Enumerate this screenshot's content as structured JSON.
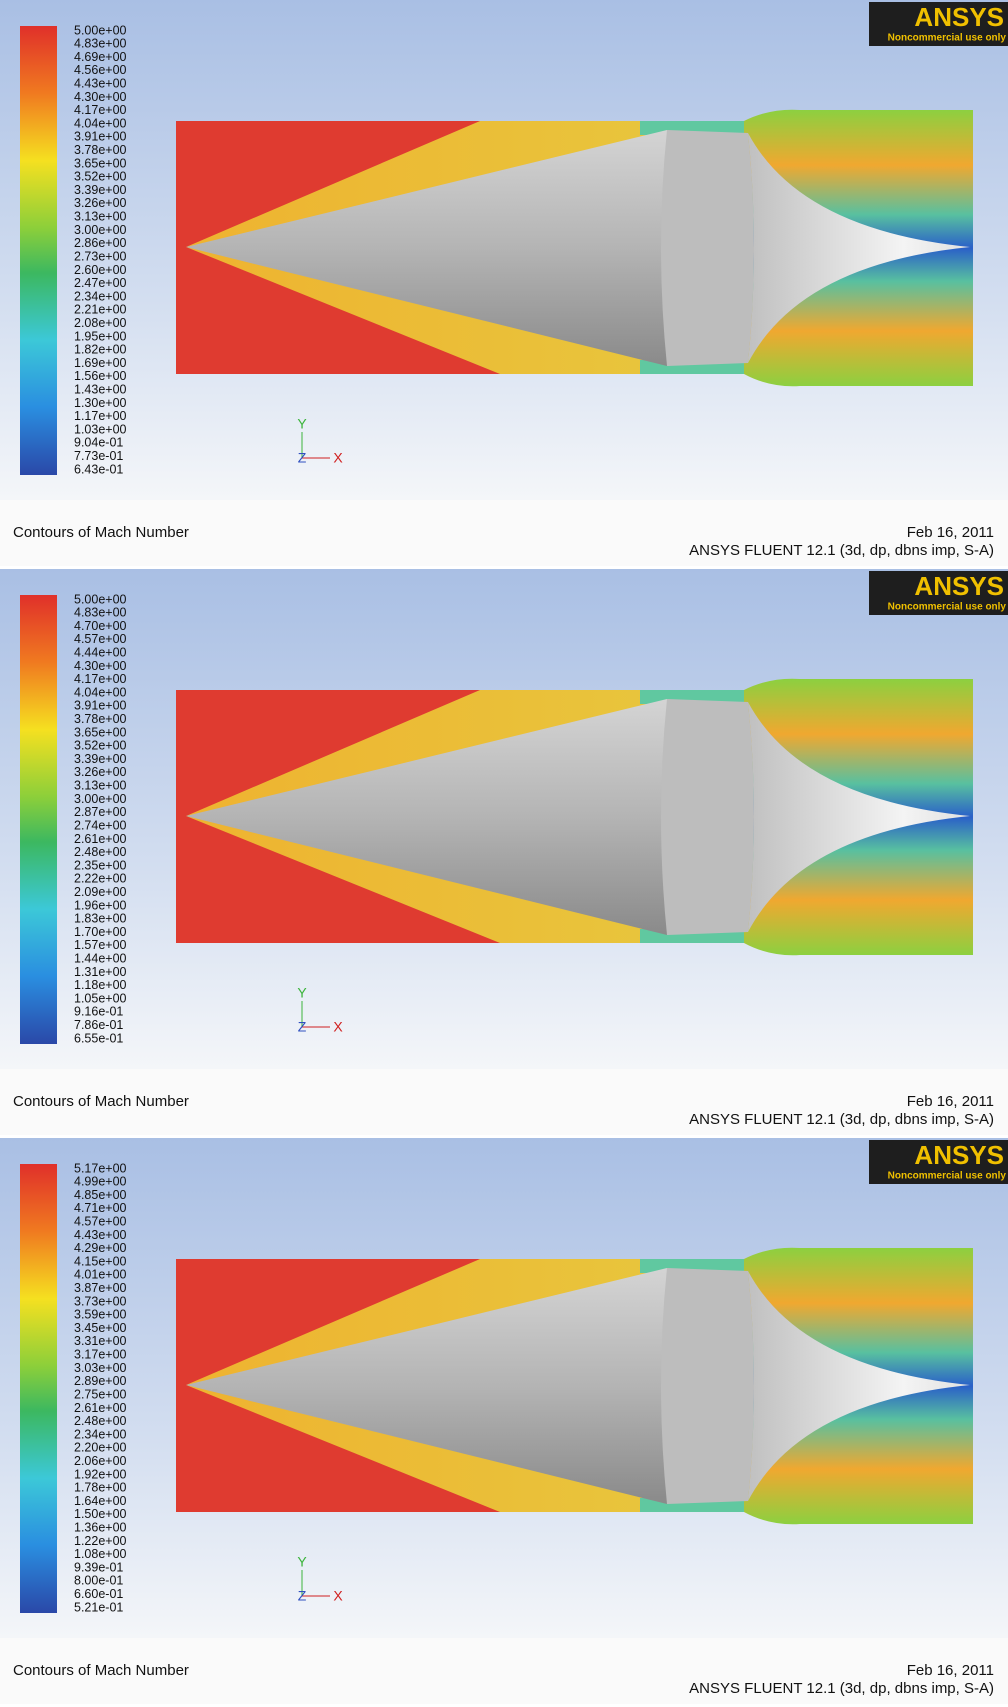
{
  "panels": [
    {
      "legend_labels": [
        "5.00e+00",
        "4.83e+00",
        "4.69e+00",
        "4.56e+00",
        "4.43e+00",
        "4.30e+00",
        "4.17e+00",
        "4.04e+00",
        "3.91e+00",
        "3.78e+00",
        "3.65e+00",
        "3.52e+00",
        "3.39e+00",
        "3.26e+00",
        "3.13e+00",
        "3.00e+00",
        "2.86e+00",
        "2.73e+00",
        "2.60e+00",
        "2.47e+00",
        "2.34e+00",
        "2.21e+00",
        "2.08e+00",
        "1.95e+00",
        "1.82e+00",
        "1.69e+00",
        "1.56e+00",
        "1.43e+00",
        "1.30e+00",
        "1.17e+00",
        "1.03e+00",
        "9.04e-01",
        "7.73e-01",
        "6.43e-01"
      ],
      "logo": "ANSYS",
      "logo_note": "Noncommercial use only",
      "axes": {
        "y": "Y",
        "z": "Z",
        "x": "X"
      },
      "caption": "Contours of Mach Number",
      "date": "Feb 16, 2011",
      "solver": "ANSYS FLUENT 12.1 (3d, dp, dbns imp, S-A)"
    },
    {
      "legend_labels": [
        "5.00e+00",
        "4.83e+00",
        "4.70e+00",
        "4.57e+00",
        "4.44e+00",
        "4.30e+00",
        "4.17e+00",
        "4.04e+00",
        "3.91e+00",
        "3.78e+00",
        "3.65e+00",
        "3.52e+00",
        "3.39e+00",
        "3.26e+00",
        "3.13e+00",
        "3.00e+00",
        "2.87e+00",
        "2.74e+00",
        "2.61e+00",
        "2.48e+00",
        "2.35e+00",
        "2.22e+00",
        "2.09e+00",
        "1.96e+00",
        "1.83e+00",
        "1.70e+00",
        "1.57e+00",
        "1.44e+00",
        "1.31e+00",
        "1.18e+00",
        "1.05e+00",
        "9.16e-01",
        "7.86e-01",
        "6.55e-01"
      ],
      "logo": "ANSYS",
      "logo_note": "Noncommercial use only",
      "axes": {
        "y": "Y",
        "z": "Z",
        "x": "X"
      },
      "caption": "Contours of Mach Number",
      "date": "Feb 16, 2011",
      "solver": "ANSYS FLUENT 12.1 (3d, dp, dbns imp, S-A)"
    },
    {
      "legend_labels": [
        "5.17e+00",
        "4.99e+00",
        "4.85e+00",
        "4.71e+00",
        "4.57e+00",
        "4.43e+00",
        "4.29e+00",
        "4.15e+00",
        "4.01e+00",
        "3.87e+00",
        "3.73e+00",
        "3.59e+00",
        "3.45e+00",
        "3.31e+00",
        "3.17e+00",
        "3.03e+00",
        "2.89e+00",
        "2.75e+00",
        "2.61e+00",
        "2.48e+00",
        "2.34e+00",
        "2.20e+00",
        "2.06e+00",
        "1.92e+00",
        "1.78e+00",
        "1.64e+00",
        "1.50e+00",
        "1.36e+00",
        "1.22e+00",
        "1.08e+00",
        "9.39e-01",
        "8.00e-01",
        "6.60e-01",
        "5.21e-01"
      ],
      "logo": "ANSYS",
      "logo_note": "Noncommercial use only",
      "axes": {
        "y": "Y",
        "z": "Z",
        "x": "X"
      },
      "caption": "Contours of Mach Number",
      "date": "Feb 16, 2011",
      "solver": "ANSYS FLUENT 12.1 (3d, dp, dbns imp, S-A)"
    }
  ]
}
